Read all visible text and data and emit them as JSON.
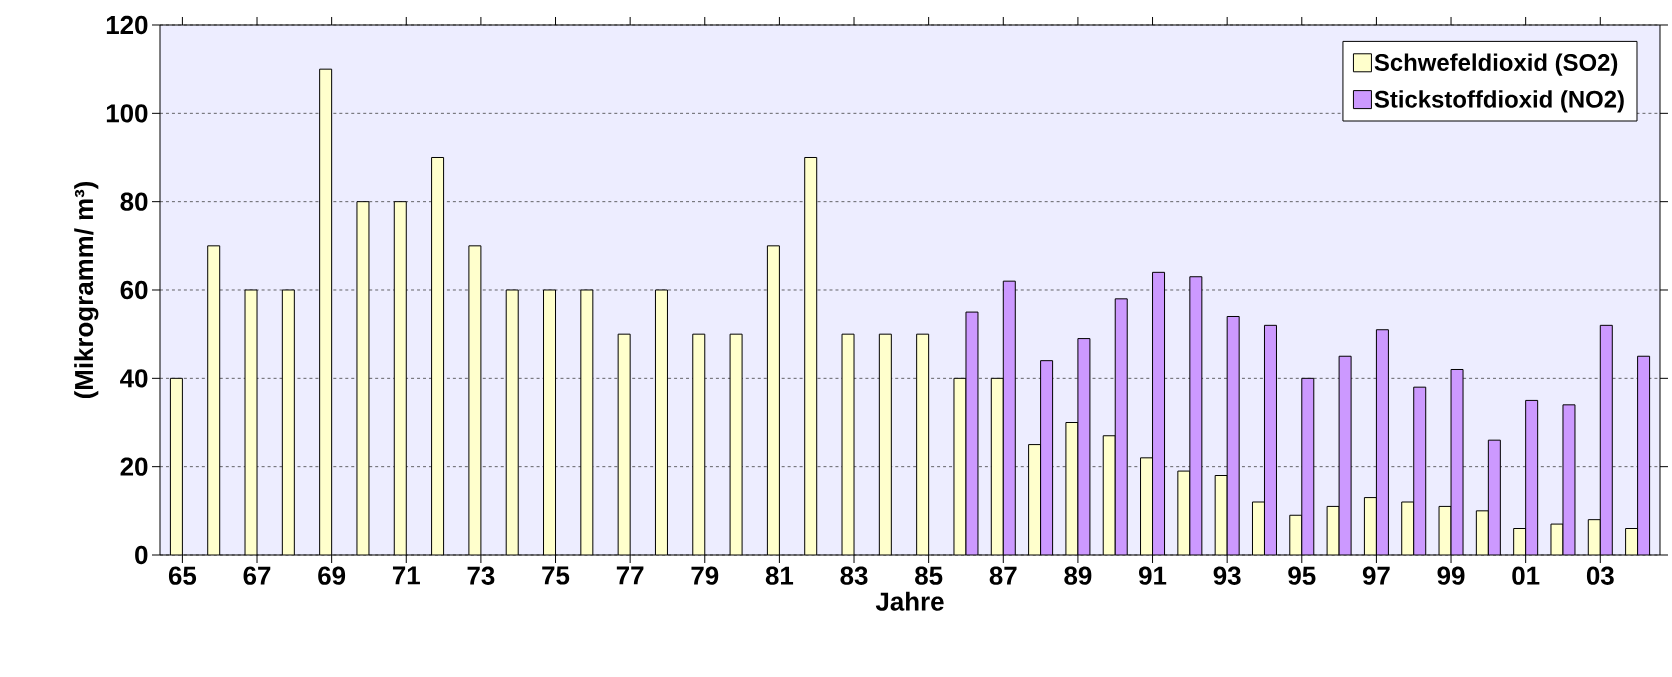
{
  "chart_data": {
    "type": "bar",
    "xlabel": "Jahre",
    "ylabel": "(Mikrogramm/ m³)",
    "categories": [
      "65",
      null,
      "67",
      null,
      "69",
      null,
      "71",
      null,
      "73",
      null,
      "75",
      null,
      "77",
      null,
      "79",
      null,
      "81",
      null,
      "83",
      null,
      "85",
      null,
      "87",
      null,
      "89",
      null,
      "91",
      null,
      "93",
      null,
      "95",
      null,
      "97",
      null,
      "99",
      null,
      "01",
      null,
      "03",
      null
    ],
    "series": [
      {
        "name": "Schwefeldioxid (SO2)",
        "color": "#ffffcc",
        "values": [
          40,
          70,
          60,
          60,
          110,
          80,
          80,
          90,
          70,
          60,
          60,
          60,
          50,
          60,
          50,
          50,
          70,
          90,
          50,
          50,
          50,
          40,
          40,
          25,
          30,
          27,
          22,
          19,
          18,
          12,
          9,
          11,
          13,
          12,
          11,
          10,
          6,
          7,
          8,
          6
        ]
      },
      {
        "name": "Stickstoffdioxid (NO2)",
        "color": "#cc99ff",
        "values": [
          null,
          null,
          null,
          null,
          null,
          null,
          null,
          null,
          null,
          null,
          null,
          null,
          null,
          null,
          null,
          null,
          null,
          null,
          null,
          null,
          null,
          55,
          62,
          44,
          49,
          58,
          64,
          63,
          54,
          52,
          40,
          45,
          51,
          38,
          42,
          26,
          35,
          34,
          52,
          45
        ]
      }
    ],
    "ylim": [
      0,
      120
    ],
    "yticks": [
      0,
      20,
      40,
      60,
      80,
      100,
      120
    ],
    "grid": "y",
    "legend": "top right"
  }
}
